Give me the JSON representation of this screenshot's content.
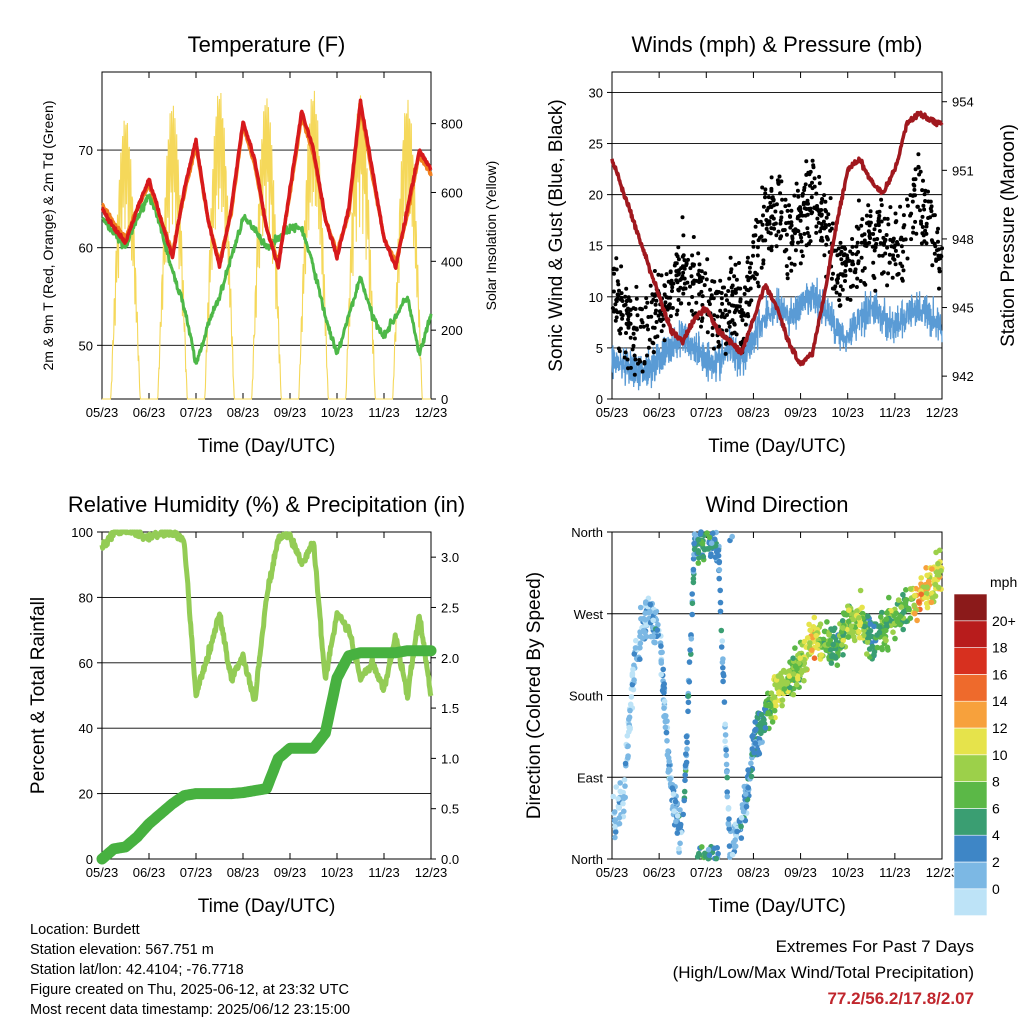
{
  "colors": {
    "temp_2m": "#d7191c",
    "temp_9m": "#f07f1e",
    "dewpoint": "#4db848",
    "solar": "#f5d85a",
    "wind": "#5a9bd5",
    "gust": "#000000",
    "pressure": "#a0181e",
    "rh": "#93cc55",
    "precip": "#47b140",
    "extremes_text": "#c0262d"
  },
  "xaxis": {
    "ticks": [
      "05/23",
      "06/23",
      "07/23",
      "08/23",
      "09/23",
      "10/23",
      "11/23",
      "12/23"
    ]
  },
  "panels": {
    "temperature": {
      "title": "Temperature (F)",
      "xlabel": "Time (Day/UTC)",
      "ylabel_left": "2m & 9m T (Red, Orange) & 2m Td (Green)",
      "ylabel_right": "Solar Insolation (Yellow)",
      "left_ticks": [
        "50",
        "60",
        "70"
      ],
      "right_ticks": [
        "0",
        "200",
        "400",
        "600",
        "800"
      ]
    },
    "winds": {
      "title": "Winds (mph) & Pressure (mb)",
      "xlabel": "Time (Day/UTC)",
      "ylabel_left": "Sonic Wind & Gust (Blue, Black)",
      "ylabel_right": "Station Pressure (Maroon)",
      "left_ticks": [
        "0",
        "5",
        "10",
        "15",
        "20",
        "25",
        "30"
      ],
      "right_ticks": [
        "942",
        "945",
        "948",
        "951",
        "954"
      ]
    },
    "humidity": {
      "title": "Relative Humidity (%) & Precipitation (in)",
      "xlabel": "Time (Day/UTC)",
      "ylabel_left": "Percent & Total Rainfall",
      "left_ticks": [
        "0",
        "20",
        "40",
        "60",
        "80",
        "100"
      ],
      "right_ticks": [
        "0.0",
        "0.5",
        "1.0",
        "1.5",
        "2.0",
        "2.5",
        "3.0"
      ]
    },
    "direction": {
      "title": "Wind Direction",
      "xlabel": "Time (Day/UTC)",
      "ylabel_left": "Direction (Colored By Speed)",
      "left_ticks": [
        "North",
        "East",
        "South",
        "West",
        "North"
      ],
      "legend_title": "mph",
      "legend_labels": [
        "0",
        "2",
        "4",
        "6",
        "8",
        "10",
        "12",
        "14",
        "16",
        "18",
        "20+"
      ],
      "legend_colors": [
        "#bde3f7",
        "#7cb8e4",
        "#3e86c6",
        "#3a9e72",
        "#5bb847",
        "#9cd04a",
        "#e6e34b",
        "#f7a13c",
        "#ee6a2c",
        "#d7301f",
        "#b81c1c",
        "#8b1a1a"
      ]
    }
  },
  "chart_data": [
    {
      "type": "line",
      "title": "Temperature (F)",
      "xlabel": "Time (Day/UTC)",
      "ylabel": "2m & 9m T (Red, Orange) & 2m Td (Green)",
      "ylabel_right": "Solar Insolation (Yellow)",
      "x": [
        0,
        0.25,
        0.5,
        0.75,
        1,
        1.25,
        1.5,
        1.75,
        2,
        2.25,
        2.5,
        2.75,
        3,
        3.25,
        3.5,
        3.75,
        4,
        4.25,
        4.5,
        4.75,
        5,
        5.25,
        5.5,
        5.75,
        6,
        6.25,
        6.5,
        6.75,
        7
      ],
      "ylim": [
        44.5,
        78
      ],
      "ylim_right": [
        0,
        950
      ],
      "series": [
        {
          "name": "2m T",
          "values": [
            64,
            62,
            60.5,
            64,
            67,
            63,
            59,
            66,
            71,
            63,
            58,
            64,
            73,
            69,
            62,
            58,
            66,
            74,
            70,
            63,
            59,
            64,
            75,
            68,
            61,
            58,
            64,
            70,
            68
          ]
        },
        {
          "name": "9m T",
          "values": [
            64.5,
            62.5,
            61,
            64,
            66.5,
            63,
            59.5,
            65.5,
            70.5,
            63,
            58.5,
            63.5,
            72.5,
            68.5,
            62,
            58.5,
            65.5,
            73.5,
            69.5,
            63,
            59.5,
            63.5,
            74.5,
            67.5,
            61,
            58.5,
            63.5,
            69.5,
            67.5
          ]
        },
        {
          "name": "2m Td",
          "values": [
            63,
            61.5,
            60,
            63,
            65.5,
            62,
            57.5,
            54,
            48,
            52,
            55,
            59,
            63,
            62,
            60,
            61,
            62,
            62,
            58,
            53,
            49,
            53,
            57,
            53,
            51,
            53,
            55,
            49,
            53
          ]
        }
      ],
      "solar": {
        "x": [
          0.5,
          1.5,
          2.5,
          3.5,
          4.5,
          5.5,
          6.5
        ],
        "peaks": [
          820,
          860,
          900,
          880,
          900,
          890,
          870
        ]
      }
    },
    {
      "type": "scatter",
      "title": "Winds (mph) & Pressure (mb)",
      "xlabel": "Time (Day/UTC)",
      "ylabel": "Sonic Wind & Gust (Blue, Black)",
      "ylabel_right": "Station Pressure (Maroon)",
      "x": [
        0,
        0.25,
        0.5,
        0.75,
        1,
        1.25,
        1.5,
        1.75,
        2,
        2.25,
        2.5,
        2.75,
        3,
        3.25,
        3.5,
        3.75,
        4,
        4.25,
        4.5,
        4.75,
        5,
        5.25,
        5.5,
        5.75,
        6,
        6.25,
        6.5,
        6.75,
        7
      ],
      "ylim": [
        0,
        32
      ],
      "ylim_right": [
        941,
        955.3
      ],
      "series": [
        {
          "name": "Sonic Wind",
          "values": [
            4,
            3,
            2.5,
            3,
            4,
            5,
            6,
            5,
            4,
            3.5,
            5,
            4,
            6,
            8,
            9,
            8,
            9,
            10,
            9,
            7,
            6,
            8,
            9,
            8,
            7,
            8,
            9,
            8,
            7
          ]
        },
        {
          "name": "Gust",
          "values": [
            11,
            8,
            6,
            7,
            8,
            10,
            13,
            12,
            10,
            8,
            10,
            9,
            13,
            17,
            19,
            16,
            18,
            20,
            17,
            13,
            12,
            15,
            16,
            16,
            14,
            16,
            20,
            17,
            14
          ]
        },
        {
          "name": "Station Pressure",
          "values": [
            951.5,
            950,
            948.5,
            947,
            945.5,
            944,
            943.5,
            944.5,
            945,
            944,
            943.5,
            943,
            944.5,
            946,
            945,
            943.5,
            942.5,
            943,
            945.5,
            948.5,
            951,
            951.5,
            950.5,
            950,
            951,
            953,
            953.5,
            953.2,
            953
          ]
        }
      ]
    },
    {
      "type": "line",
      "title": "Relative Humidity (%) & Precipitation (in)",
      "xlabel": "Time (Day/UTC)",
      "ylabel": "Percent & Total Rainfall",
      "x": [
        0,
        0.25,
        0.5,
        0.75,
        1,
        1.25,
        1.5,
        1.75,
        2,
        2.25,
        2.5,
        2.75,
        3,
        3.25,
        3.5,
        3.75,
        4,
        4.25,
        4.5,
        4.75,
        5,
        5.25,
        5.5,
        5.75,
        6,
        6.25,
        6.5,
        6.75,
        7
      ],
      "ylim": [
        0,
        100
      ],
      "ylim_right": [
        0,
        3.25
      ],
      "series": [
        {
          "name": "RH",
          "values": [
            95,
            100,
            100,
            100,
            98,
            100,
            100,
            97,
            50,
            62,
            75,
            55,
            62,
            48,
            80,
            98,
            99,
            90,
            97,
            55,
            75,
            70,
            55,
            60,
            52,
            68,
            50,
            75,
            50
          ]
        },
        {
          "name": "Total Precipitation",
          "values": [
            0,
            0.1,
            0.12,
            0.22,
            0.35,
            0.45,
            0.55,
            0.63,
            0.65,
            0.65,
            0.65,
            0.65,
            0.66,
            0.68,
            0.7,
            1.0,
            1.1,
            1.1,
            1.1,
            1.25,
            1.8,
            2.02,
            2.05,
            2.05,
            2.05,
            2.05,
            2.07,
            2.07,
            2.07
          ]
        }
      ]
    },
    {
      "type": "scatter",
      "title": "Wind Direction",
      "xlabel": "Time (Day/UTC)",
      "ylabel": "Direction (Colored By Speed)",
      "x": [
        0,
        0.25,
        0.5,
        0.75,
        1,
        1.25,
        1.5,
        1.75,
        2,
        2.25,
        2.5,
        2.75,
        3,
        3.25,
        3.5,
        3.75,
        4,
        4.25,
        4.5,
        4.75,
        5,
        5.25,
        5.5,
        5.75,
        6,
        6.25,
        6.5,
        6.75,
        7
      ],
      "ylim": [
        0,
        360
      ],
      "series": [
        {
          "name": "Direction",
          "values": [
            40,
            70,
            230,
            270,
            250,
            80,
            20,
            345,
            350,
            355,
            10,
            40,
            120,
            160,
            185,
            200,
            210,
            250,
            240,
            230,
            260,
            270,
            240,
            250,
            265,
            280,
            285,
            300,
            320
          ]
        },
        {
          "name": "Speed",
          "values": [
            3,
            2,
            2,
            3,
            4,
            3,
            4,
            6,
            7,
            5,
            3,
            4,
            5,
            7,
            12,
            10,
            10,
            14,
            9,
            8,
            10,
            12,
            6,
            9,
            10,
            8,
            15,
            13,
            12
          ]
        }
      ]
    }
  ],
  "footer": {
    "location": "Location: Burdett",
    "elevation": "Station elevation: 567.751 m",
    "latlon": "Station lat/lon: 42.4104; -76.7718",
    "created": "Figure created on Thu, 2025-06-12, at 23:32 UTC",
    "latest": "Most recent data timestamp: 2025/06/12 23:15:00",
    "extremes_title": "Extremes For Past 7 Days",
    "extremes_desc": "(High/Low/Max Wind/Total Precipitation)",
    "extremes_values": "77.2/56.2/17.8/2.07"
  }
}
